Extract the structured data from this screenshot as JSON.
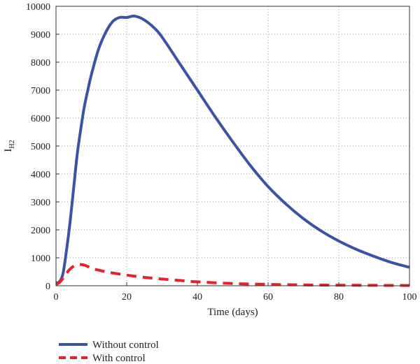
{
  "chart_data": {
    "type": "line",
    "xlabel": "Time (days)",
    "ylabel": {
      "main": "I",
      "subscript": "H2"
    },
    "xlim": [
      0,
      100
    ],
    "ylim": [
      0,
      10000
    ],
    "xticks": [
      0,
      20,
      40,
      60,
      80,
      100
    ],
    "yticks": [
      0,
      1000,
      2000,
      3000,
      4000,
      5000,
      6000,
      7000,
      8000,
      9000,
      10000
    ],
    "grid": true,
    "legend_position": "bottom-left, below plot",
    "series": [
      {
        "name": "Without control",
        "color": "#3a54a5",
        "style": "solid",
        "x": [
          0,
          1,
          2,
          3,
          4,
          5,
          6,
          7,
          8,
          9,
          10,
          12,
          14,
          16,
          18,
          20,
          22,
          24,
          26,
          28,
          30,
          35,
          40,
          45,
          50,
          55,
          60,
          65,
          70,
          75,
          80,
          85,
          90,
          95,
          100
        ],
        "y": [
          100,
          150,
          450,
          1300,
          2300,
          3500,
          4700,
          5600,
          6400,
          7000,
          7550,
          8450,
          9050,
          9450,
          9600,
          9600,
          9650,
          9580,
          9420,
          9200,
          8900,
          7950,
          7000,
          6050,
          5150,
          4300,
          3550,
          2930,
          2400,
          1960,
          1600,
          1300,
          1050,
          830,
          660
        ]
      },
      {
        "name": "With control",
        "color": "#e8202a",
        "style": "dashed",
        "x": [
          0,
          1,
          2,
          3,
          4,
          5,
          6,
          7,
          8,
          9,
          10,
          12,
          15,
          20,
          25,
          30,
          35,
          40,
          50,
          60,
          70,
          80,
          90,
          100
        ],
        "y": [
          50,
          120,
          270,
          450,
          600,
          700,
          750,
          760,
          740,
          690,
          620,
          560,
          480,
          380,
          300,
          240,
          190,
          140,
          80,
          50,
          30,
          20,
          15,
          10
        ]
      }
    ]
  }
}
